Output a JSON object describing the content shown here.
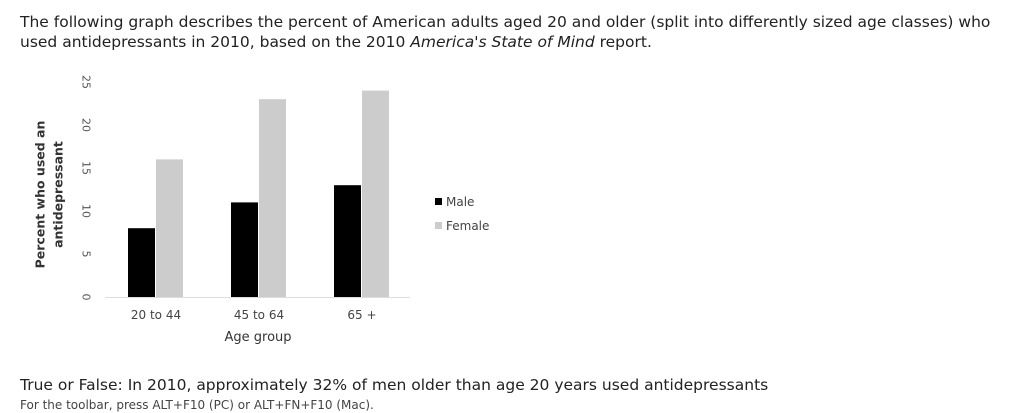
{
  "intro": {
    "text_before": "The following graph describes the percent of American adults aged 20 and older (split into differently sized age classes) who used antidepressants in 2010, based on the 2010 ",
    "report_title": "America's State of Mind",
    "text_after": " report."
  },
  "question": {
    "text": "True or False: In 2010, approximately 32% of men older than age 20 years used antidepressants"
  },
  "toolbar_hint": {
    "text": "For the toolbar, press ALT+F10 (PC) or ALT+FN+F10 (Mac)."
  },
  "chart_data": {
    "type": "bar",
    "title": "",
    "xlabel": "Age group",
    "ylabel": "Percent who used an antidepressant",
    "ylabel_lines": [
      "Percent who used an",
      "antidepressant"
    ],
    "categories": [
      "20 to 44",
      "45 to 64",
      "65 +"
    ],
    "series": [
      {
        "name": "Male",
        "values": [
          8,
          11,
          13
        ],
        "color": "#000000"
      },
      {
        "name": "Female",
        "values": [
          16,
          23,
          24
        ],
        "color": "#cccccc"
      }
    ],
    "ylim": [
      0,
      25
    ],
    "yticks": [
      0,
      5,
      10,
      15,
      20,
      25
    ],
    "grid": false,
    "legend_position": "right"
  }
}
